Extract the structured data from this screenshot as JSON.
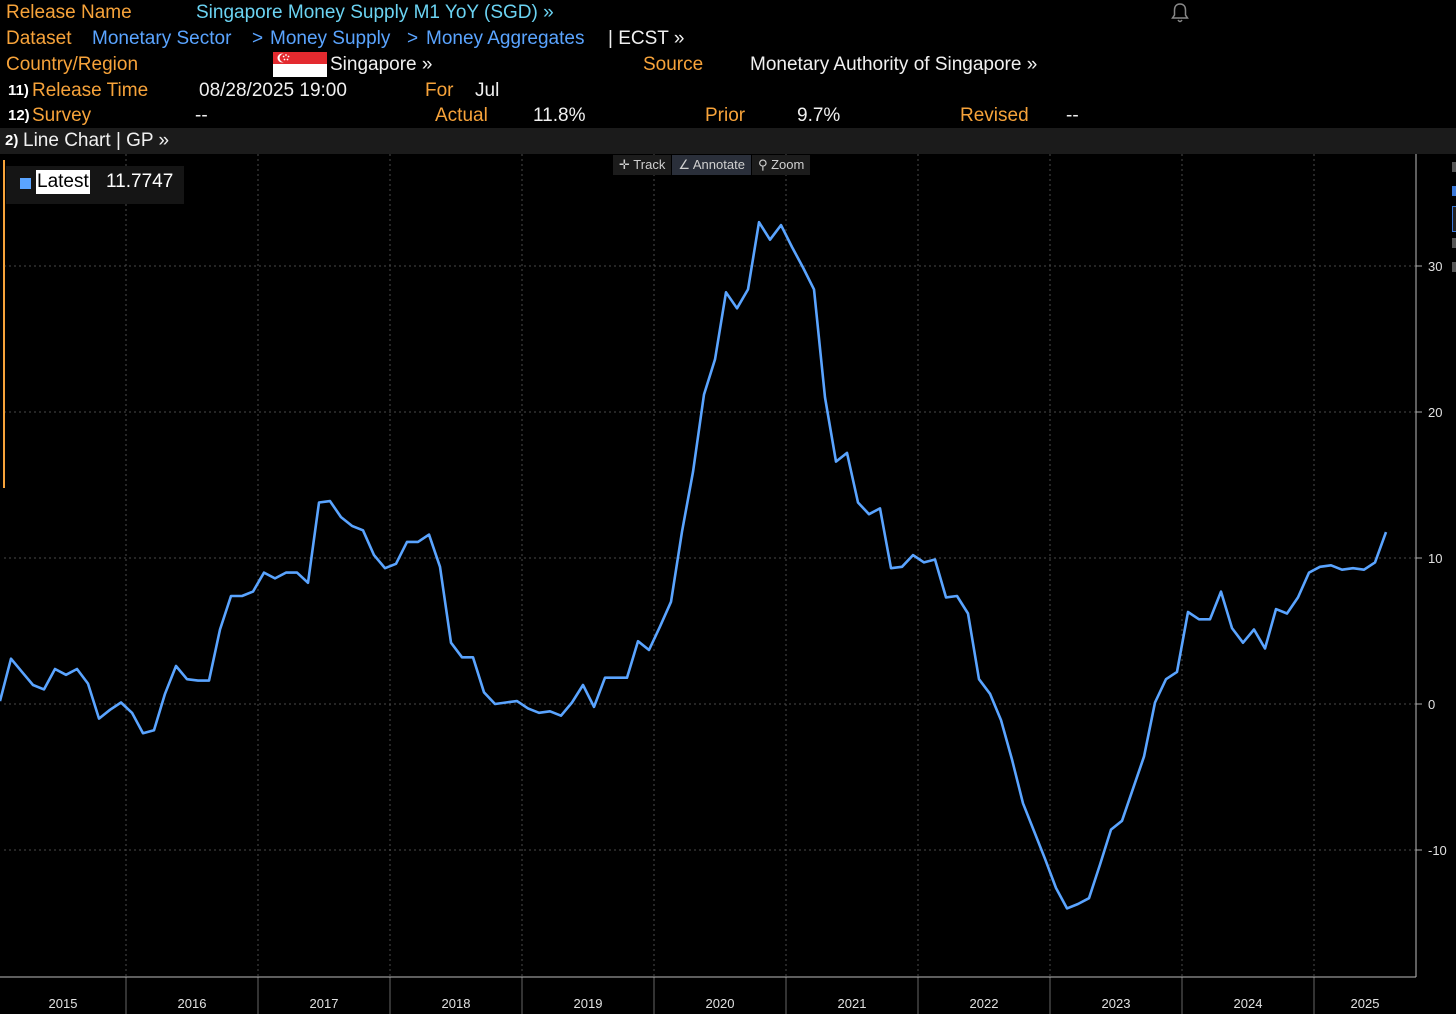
{
  "header": {
    "release_name_label": "Release Name",
    "release_name": "Singapore Money Supply M1 YoY (SGD) »",
    "dataset_label": "Dataset",
    "dataset_path": [
      "Monetary Sector",
      "Money Supply",
      "Money Aggregates"
    ],
    "dataset_sep": ">",
    "dataset_tail": "| ECST »",
    "country_label": "Country/Region",
    "country": "Singapore »",
    "source_label": "Source",
    "source": "Monetary Authority of Singapore »",
    "release_time_num": "11)",
    "release_time_label": "Release Time",
    "release_time": "08/28/2025 19:00",
    "for_label": "For",
    "for_value": "Jul",
    "survey_num": "12)",
    "survey_label": "Survey",
    "survey_value": "--",
    "actual_label": "Actual",
    "actual_value": "11.8%",
    "prior_label": "Prior",
    "prior_value": "9.7%",
    "revised_label": "Revised",
    "revised_value": "--"
  },
  "toolbar": {
    "num": "2)",
    "label": "Line Chart | GP »",
    "tools": [
      {
        "icon": "crosshair-icon",
        "glyph": "✛",
        "label": "Track"
      },
      {
        "icon": "pencil-icon",
        "glyph": "∠",
        "label": "Annotate"
      },
      {
        "icon": "magnifier-icon",
        "glyph": "⚲",
        "label": "Zoom"
      }
    ]
  },
  "legend": {
    "label": "Latest",
    "value": "11.7747"
  },
  "colors": {
    "series": "#5aa4ff",
    "accent": "#f7a33a",
    "background": "#000000",
    "grid": "#4a4a4a"
  },
  "chart_data": {
    "type": "line",
    "title": "",
    "xlabel": "",
    "ylabel": "",
    "ylim": [
      -18,
      37.5
    ],
    "yticks": [
      -10,
      0,
      10,
      20,
      30
    ],
    "x_tick_labels": [
      "2015",
      "2016",
      "2017",
      "2018",
      "2019",
      "2020",
      "2021",
      "2022",
      "2023",
      "2024",
      "2025"
    ],
    "x_start": "2015-01",
    "x_end": "2025-07",
    "grid": true,
    "legend_position": "top-left",
    "series": [
      {
        "name": "Latest",
        "values": [
          0.2,
          3.1,
          2.2,
          1.3,
          1.0,
          2.4,
          2.0,
          2.4,
          1.4,
          -1.0,
          -0.4,
          0.1,
          -0.6,
          -2.0,
          -1.8,
          0.7,
          2.6,
          1.7,
          1.6,
          1.6,
          5.1,
          7.4,
          7.4,
          7.7,
          9.0,
          8.6,
          9.0,
          9.0,
          8.3,
          13.8,
          13.9,
          12.8,
          12.2,
          11.9,
          10.2,
          9.3,
          9.6,
          11.1,
          11.1,
          11.6,
          9.4,
          4.2,
          3.2,
          3.2,
          0.8,
          0.0,
          0.1,
          0.2,
          -0.3,
          -0.6,
          -0.5,
          -0.8,
          0.1,
          1.3,
          -0.2,
          1.8,
          1.8,
          1.8,
          4.3,
          3.7,
          5.3,
          7.0,
          11.8,
          15.9,
          21.2,
          23.6,
          28.2,
          27.1,
          28.4,
          33.0,
          31.8,
          32.8,
          31.3,
          29.9,
          28.4,
          21.0,
          16.6,
          17.2,
          13.8,
          13.0,
          13.4,
          9.3,
          9.4,
          10.2,
          9.7,
          9.9,
          7.3,
          7.4,
          6.2,
          1.7,
          0.7,
          -1.1,
          -3.8,
          -6.8,
          -8.7,
          -10.6,
          -12.6,
          -14.0,
          -13.7,
          -13.3,
          -11.0,
          -8.6,
          -8.0,
          -5.8,
          -3.6,
          0.1,
          1.7,
          2.2,
          6.3,
          5.8,
          5.8,
          7.7,
          5.2,
          4.2,
          5.1,
          3.8,
          6.5,
          6.2,
          7.3,
          9.0,
          9.4,
          9.5,
          9.2,
          9.3,
          9.2,
          9.7,
          11.7747
        ]
      }
    ]
  }
}
